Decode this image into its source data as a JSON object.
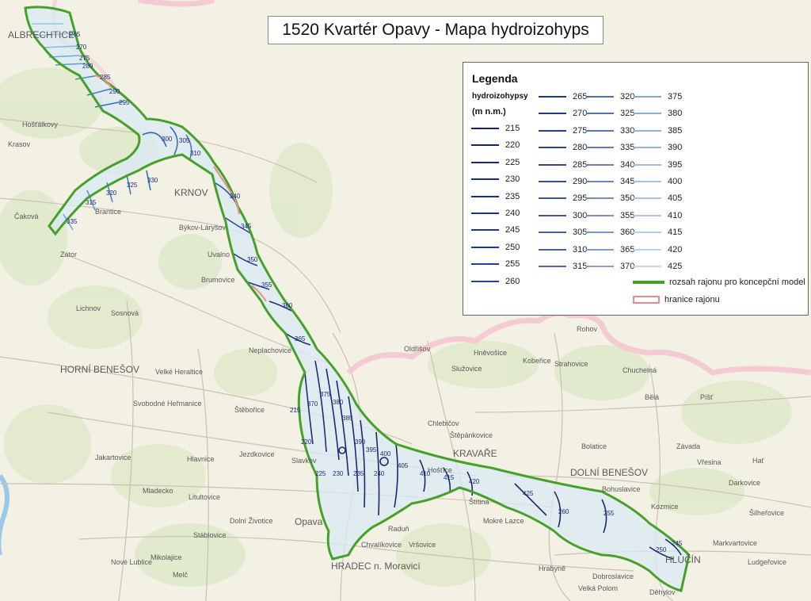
{
  "title": "1520 Kvartér Opavy - Mapa hydroizohyps",
  "legend": {
    "title": "Legenda",
    "subtitle": "hydroizohypsy",
    "unit": "(m n.m.)",
    "extent_label": "rozsah rajonu pro koncepční model",
    "boundary_label": "hranice rajonu",
    "colors": {
      "extent": "#46a12a",
      "boundary": "#e98b8b",
      "contour_dark": "#1b2a7a",
      "contour_light": "#bfe0f5"
    },
    "col1": [
      "215",
      "220",
      "225",
      "230",
      "235",
      "240",
      "245",
      "250",
      "255",
      "260"
    ],
    "col2": [
      "265",
      "270",
      "275",
      "280",
      "285",
      "290",
      "295",
      "300",
      "305",
      "310",
      "315"
    ],
    "col3": [
      "320",
      "325",
      "330",
      "335",
      "340",
      "345",
      "350",
      "355",
      "360",
      "365",
      "370"
    ],
    "col4": [
      "375",
      "380",
      "385",
      "390",
      "395",
      "400",
      "405",
      "410",
      "415",
      "420",
      "425"
    ]
  },
  "places": [
    "ALBRECHTICE",
    "Krasov",
    "Hošťálkovy",
    "Čaková",
    "Brantice",
    "KRNOV",
    "Býkov-Láryšov",
    "Zátor",
    "Uvalno",
    "Lichnov",
    "Brumovice",
    "Sosnová",
    "Neplachovice",
    "HORNÍ BENEŠOV",
    "Velké Heraltice",
    "Svobodné Heřmanice",
    "Štěbořice",
    "Hlavnice",
    "Jezdkovice",
    "Slavkov",
    "Litultovice",
    "Dolní Životice",
    "Stáblovice",
    "Opava",
    "HRADEC n. Moravicí",
    "Chvalíkovice",
    "Raduň",
    "Vršovice",
    "Mokré Lazce",
    "Štítina",
    "Hošťice",
    "KRAVAŘE",
    "Štěpánkovice",
    "Chlebičov",
    "Oldřišov",
    "Služovice",
    "Hněvošice",
    "Kobeřice",
    "Rohov",
    "Strahovice",
    "Chuchelná",
    "Bělá",
    "Bolatice",
    "DOLNÍ BENEŠOV",
    "Bohuslavice",
    "Závada",
    "Vřesina",
    "Píšť",
    "Hať",
    "Darkovice",
    "Kozmice",
    "Šilheřovice",
    "Markvartovice",
    "Ludgeřovice",
    "HLUČÍN",
    "Děhylov",
    "Dobroslavice",
    "Velká Polom",
    "Hrabyně",
    "Jakartovice",
    "Mladecko",
    "Nové Lublice",
    "Mikolajice",
    "Melč"
  ],
  "contour_labels": [
    "265",
    "270",
    "275",
    "280",
    "285",
    "290",
    "295",
    "300",
    "305",
    "310",
    "315",
    "320",
    "325",
    "330",
    "335",
    "340",
    "345",
    "350",
    "355",
    "360",
    "365",
    "370",
    "375",
    "380",
    "385",
    "390",
    "395",
    "400",
    "405",
    "410",
    "415",
    "420",
    "425",
    "260",
    "255",
    "250",
    "245",
    "240",
    "235",
    "230",
    "225",
    "220",
    "215"
  ]
}
